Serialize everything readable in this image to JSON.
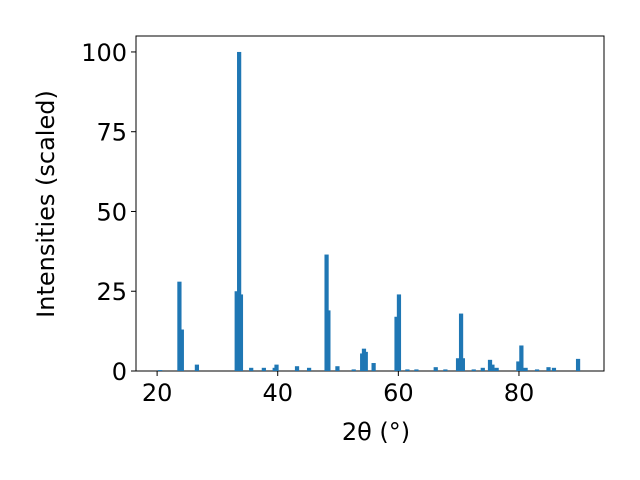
{
  "chart_data": {
    "type": "bar",
    "xlabel": "2θ (°)",
    "ylabel": "Intensities (scaled)",
    "color": "#1f77b4",
    "x": [
      20.5,
      23.7,
      24.1,
      26.6,
      33.2,
      33.6,
      33.9,
      35.6,
      37.7,
      39.5,
      39.8,
      43.2,
      45.2,
      48.1,
      48.4,
      49.9,
      52.6,
      54.0,
      54.3,
      54.6,
      55.9,
      59.7,
      60.1,
      61.5,
      63.0,
      66.2,
      67.8,
      69.9,
      70.4,
      70.7,
      72.5,
      74.0,
      75.2,
      75.6,
      76.3,
      79.9,
      80.4,
      81.1,
      83.0,
      84.9,
      85.8,
      89.8
    ],
    "values": [
      0.3,
      28,
      13,
      2,
      25,
      100,
      24,
      1,
      1,
      1,
      2,
      1.5,
      1,
      36.5,
      19,
      1.5,
      0.5,
      5.5,
      7,
      6,
      2.5,
      17,
      24,
      0.5,
      0.5,
      1.2,
      0.5,
      4,
      18,
      4,
      0.5,
      1,
      3.5,
      2,
      1,
      3,
      8,
      1,
      0.5,
      1.2,
      1,
      3.8
    ],
    "xlim": [
      16.5,
      94.1
    ],
    "ylim": [
      0,
      105
    ],
    "xticks": [
      20,
      40,
      60,
      80
    ],
    "yticks": [
      0,
      25,
      50,
      75,
      100
    ]
  }
}
